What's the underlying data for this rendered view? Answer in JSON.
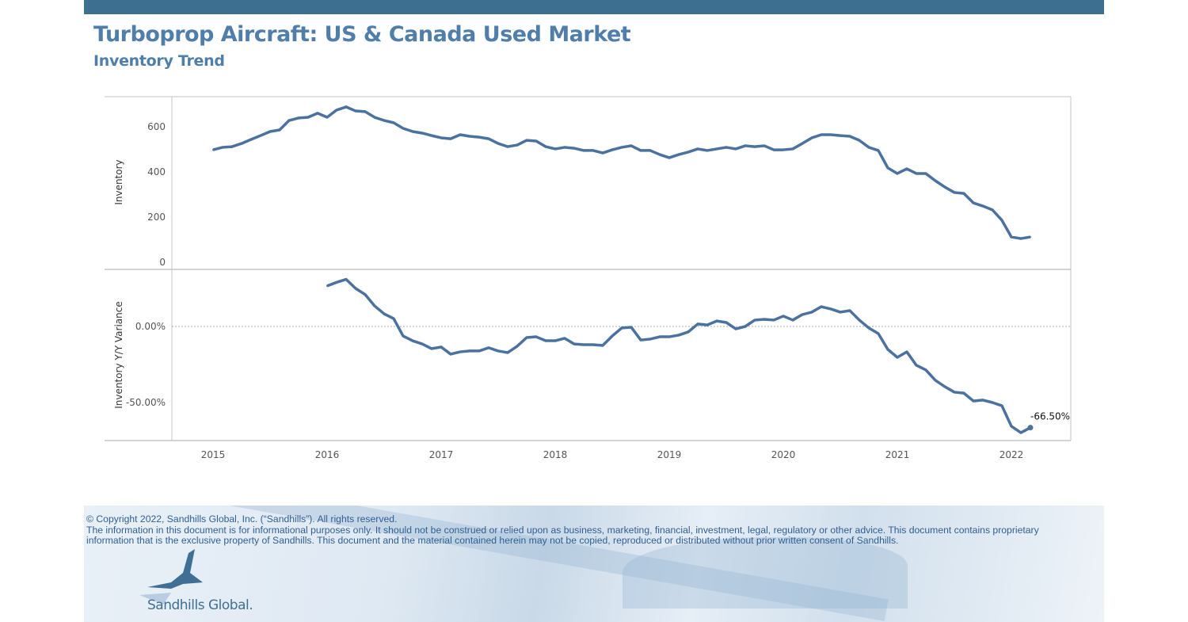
{
  "header": {
    "title": "Turboprop Aircraft:  US & Canada Used Market",
    "subtitle": "Inventory Trend"
  },
  "colors": {
    "line": "#4a72a0",
    "header_band": "#3d6f91",
    "title": "#4f7eab"
  },
  "chart_data": [
    {
      "type": "line",
      "ylabel": "Inventory",
      "xlabel": "",
      "ylim": [
        -30,
        735
      ],
      "yticks": [
        "0",
        "200",
        "400",
        "600"
      ],
      "ytick_values": [
        0,
        200,
        400,
        600
      ],
      "xticks": [
        "2015",
        "2016",
        "2017",
        "2018",
        "2019",
        "2020",
        "2021",
        "2022"
      ],
      "x_start": "2015-01",
      "x_frequency": "monthly",
      "grid": false,
      "series": [
        {
          "values": [
            498,
            509,
            512,
            526,
            544,
            561,
            579,
            586,
            628,
            639,
            642,
            660,
            642,
            674,
            688,
            670,
            667,
            642,
            628,
            618,
            593,
            579,
            572,
            561,
            551,
            547,
            565,
            558,
            554,
            547,
            526,
            512,
            519,
            540,
            537,
            512,
            502,
            509,
            505,
            495,
            495,
            484,
            498,
            509,
            516,
            495,
            495,
            477,
            463,
            477,
            488,
            502,
            495,
            502,
            509,
            502,
            516,
            512,
            516,
            498,
            498,
            502,
            526,
            551,
            565,
            565,
            561,
            558,
            540,
            509,
            495,
            418,
            393,
            414,
            393,
            393,
            361,
            333,
            309,
            305,
            263,
            249,
            232,
            186,
            112,
            105,
            112
          ]
        }
      ]
    },
    {
      "type": "line",
      "ylabel": "Inventory Y/Y Variance",
      "xlabel": "",
      "ylim": [
        -75,
        37.5
      ],
      "yticks": [
        "0.00%",
        "-50.00%"
      ],
      "ytick_values": [
        0,
        -50
      ],
      "reference_line": 0,
      "xticks": [
        "2015",
        "2016",
        "2017",
        "2018",
        "2019",
        "2020",
        "2021",
        "2022"
      ],
      "x_start": "2016-01",
      "x_frequency": "monthly",
      "grid": false,
      "annotation": "-66.50%",
      "series": [
        {
          "values": [
            26.6,
            29,
            31,
            25,
            21,
            13.5,
            8.3,
            5.2,
            -6.3,
            -9.4,
            -11.5,
            -14.6,
            -13.5,
            -18.2,
            -16.7,
            -16.1,
            -16.1,
            -14,
            -16.1,
            -17.2,
            -13,
            -7.3,
            -6.8,
            -9.4,
            -9.4,
            -7.8,
            -11.5,
            -12,
            -12,
            -12.5,
            -6.3,
            -1,
            -0.5,
            -8.9,
            -8.3,
            -6.8,
            -6.8,
            -5.7,
            -3.6,
            1.6,
            1,
            3.6,
            2.6,
            -1.6,
            0,
            4.2,
            4.7,
            4.2,
            6.8,
            4.2,
            7.8,
            9.4,
            13,
            11.5,
            9.4,
            10.4,
            4.2,
            -1,
            -4.7,
            -15.1,
            -20.3,
            -16.7,
            -25.5,
            -28.6,
            -35.4,
            -39.6,
            -43.2,
            -43.8,
            -49,
            -48.4,
            -50,
            -52.1,
            -65.6,
            -69.8,
            -66.5
          ]
        }
      ]
    }
  ],
  "footer": {
    "copyright": "© Copyright 2022, Sandhills Global, Inc. (“Sandhills”). All rights reserved.",
    "disclaimer_line1": "The information in this document is for informational purposes only.  It should not be construed or relied upon as business, marketing, financial, investment, legal, regulatory or other advice. This document contains proprietary",
    "disclaimer_line2": "information that is the exclusive property of Sandhills. This document and the material contained herein may not be copied, reproduced or distributed without prior written consent of Sandhills.",
    "logo_text": "Sandhills Global."
  }
}
